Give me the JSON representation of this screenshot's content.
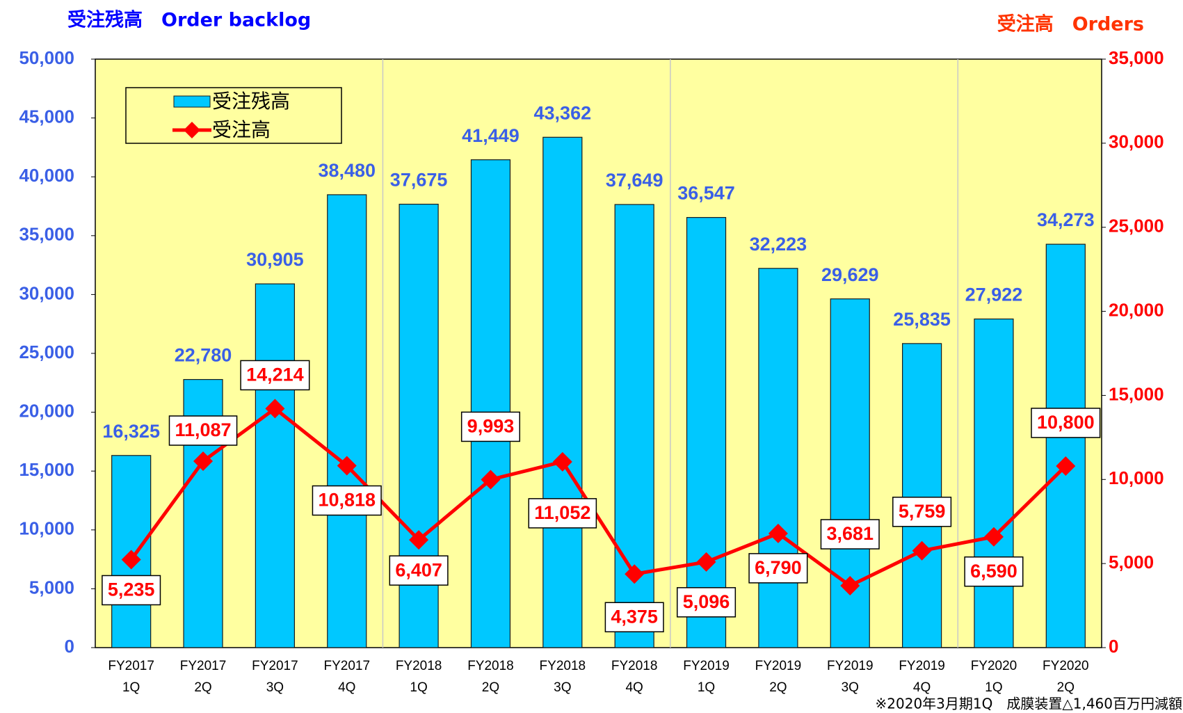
{
  "chart_data": {
    "type": "bar-line",
    "y_title": "受注残高　Order backlog",
    "y2_title": "受注高　Orders",
    "note": "※2020年3月期1Q　成膜装置△1,460百万円減額",
    "categories": [
      [
        "FY2017",
        "1Q"
      ],
      [
        "FY2017",
        "2Q"
      ],
      [
        "FY2017",
        "3Q"
      ],
      [
        "FY2017",
        "4Q"
      ],
      [
        "FY2018",
        "1Q"
      ],
      [
        "FY2018",
        "2Q"
      ],
      [
        "FY2018",
        "3Q"
      ],
      [
        "FY2018",
        "4Q"
      ],
      [
        "FY2019",
        "1Q"
      ],
      [
        "FY2019",
        "2Q"
      ],
      [
        "FY2019",
        "3Q"
      ],
      [
        "FY2019",
        "4Q"
      ],
      [
        "FY2020",
        "1Q"
      ],
      [
        "FY2020",
        "2Q"
      ]
    ],
    "series": [
      {
        "name": "受注残高",
        "type": "bar",
        "color": "#00c8ff",
        "values": [
          16325,
          22780,
          30905,
          38480,
          37675,
          41449,
          43362,
          37649,
          36547,
          32223,
          29629,
          25835,
          27922,
          34273
        ],
        "value_labels": [
          "16,325",
          "22,780",
          "30,905",
          "38,480",
          "37,675",
          "41,449",
          "43,362",
          "37,649",
          "36,547",
          "32,223",
          "29,629",
          "25,835",
          "27,922",
          "34,273"
        ]
      },
      {
        "name": "受注高",
        "type": "line",
        "axis": "y2",
        "color": "#ff0000",
        "values": [
          5235,
          11087,
          14214,
          10818,
          6407,
          9993,
          11052,
          4375,
          5096,
          6790,
          3681,
          5759,
          6590,
          10800
        ],
        "value_labels": [
          "5,235",
          "11,087",
          "14,214",
          "10,818",
          "6,407",
          "9,993",
          "11,052",
          "4,375",
          "5,096",
          "6,790",
          "3,681",
          "5,759",
          "6,590",
          "10,800"
        ]
      }
    ],
    "ylim": [
      0,
      50000
    ],
    "yticks": [
      0,
      {
        "value": 5000,
        "label": "5,000"
      },
      {
        "value": 10000,
        "label": "10,000"
      },
      {
        "value": 15000,
        "label": "15,000"
      },
      {
        "value": 20000,
        "label": "20,000"
      },
      {
        "value": 25000,
        "label": "25,000"
      },
      {
        "value": 30000,
        "label": "30,000"
      },
      {
        "value": 35000,
        "label": "35,000"
      },
      {
        "value": 40000,
        "label": "40,000"
      },
      {
        "value": 45000,
        "label": "45,000"
      },
      {
        "value": 50000,
        "label": "50,000"
      }
    ],
    "y2lim": [
      0,
      35000
    ],
    "y2ticks": [
      0,
      {
        "value": 5000,
        "label": "5,000"
      },
      {
        "value": 10000,
        "label": "10,000"
      },
      {
        "value": 15000,
        "label": "15,000"
      },
      {
        "value": 20000,
        "label": "20,000"
      },
      {
        "value": 25000,
        "label": "25,000"
      },
      {
        "value": 30000,
        "label": "30,000"
      },
      {
        "value": 35000,
        "label": "35,000"
      }
    ],
    "legend": "upper left",
    "plot_background": "#ffffa0"
  }
}
